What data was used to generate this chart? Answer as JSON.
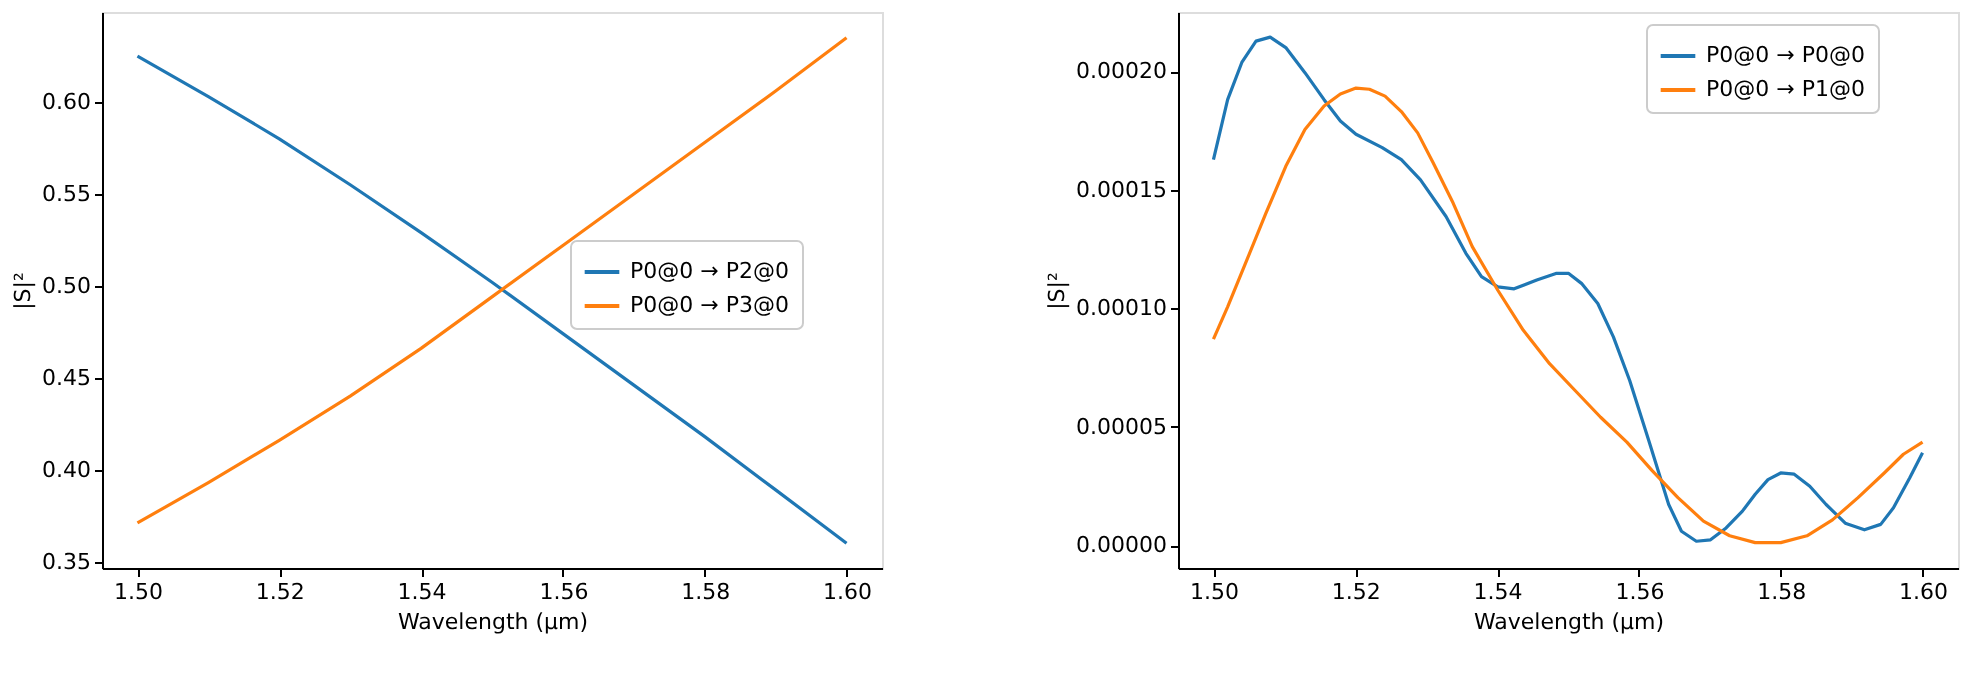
{
  "chart_data": [
    {
      "type": "line",
      "xlabel": "Wavelength (μm)",
      "ylabel": "|S|²",
      "legend": "right",
      "grid": false,
      "xlim": [
        1.495,
        1.605
      ],
      "ylim": [
        0.3465,
        0.649
      ],
      "xticks": [
        {
          "value": 1.5,
          "label": "1.50"
        },
        {
          "value": 1.52,
          "label": "1.52"
        },
        {
          "value": 1.54,
          "label": "1.54"
        },
        {
          "value": 1.56,
          "label": "1.56"
        },
        {
          "value": 1.58,
          "label": "1.58"
        },
        {
          "value": 1.6,
          "label": "1.60"
        }
      ],
      "yticks": [
        {
          "value": 0.35,
          "label": "0.35"
        },
        {
          "value": 0.4,
          "label": "0.40"
        },
        {
          "value": 0.45,
          "label": "0.45"
        },
        {
          "value": 0.5,
          "label": "0.50"
        },
        {
          "value": 0.55,
          "label": "0.55"
        },
        {
          "value": 0.6,
          "label": "0.60"
        }
      ],
      "series": [
        {
          "name": "P0@0 → P2@0",
          "color": "#1f77b4",
          "x": [
            1.5,
            1.51,
            1.52,
            1.53,
            1.54,
            1.55,
            1.56,
            1.57,
            1.58,
            1.59,
            1.6
          ],
          "values": [
            0.625,
            0.603,
            0.58,
            0.555,
            0.529,
            0.502,
            0.474,
            0.446,
            0.418,
            0.389,
            0.36
          ]
        },
        {
          "name": "P0@0 → P3@0",
          "color": "#ff7f0e",
          "x": [
            1.5,
            1.51,
            1.52,
            1.53,
            1.54,
            1.55,
            1.56,
            1.57,
            1.58,
            1.59,
            1.6
          ],
          "values": [
            0.371,
            0.393,
            0.416,
            0.44,
            0.466,
            0.494,
            0.522,
            0.55,
            0.578,
            0.606,
            0.635
          ]
        }
      ]
    },
    {
      "type": "line",
      "xlabel": "Wavelength (μm)",
      "ylabel": "|S|²",
      "legend": "top right",
      "grid": false,
      "xlim": [
        1.495,
        1.605
      ],
      "ylim": [
        -9.6e-06,
        0.000225
      ],
      "xticks": [
        {
          "value": 1.5,
          "label": "1.50"
        },
        {
          "value": 1.52,
          "label": "1.52"
        },
        {
          "value": 1.54,
          "label": "1.54"
        },
        {
          "value": 1.56,
          "label": "1.56"
        },
        {
          "value": 1.58,
          "label": "1.58"
        },
        {
          "value": 1.6,
          "label": "1.60"
        }
      ],
      "yticks": [
        {
          "value": 0,
          "label": "0.00000"
        },
        {
          "value": 5e-05,
          "label": "0.00005"
        },
        {
          "value": 0.0001,
          "label": "0.00010"
        },
        {
          "value": 0.00015,
          "label": "0.00015"
        },
        {
          "value": 0.0002,
          "label": "0.00020"
        }
      ],
      "series": [
        {
          "name": "P0@0 → P0@0",
          "color": "#1f77b4",
          "x": [
            1.5,
            1.502,
            1.504,
            1.506,
            1.508,
            1.5102,
            1.5129,
            1.5156,
            1.5179,
            1.5201,
            1.5238,
            1.5265,
            1.5292,
            1.5328,
            1.5356,
            1.5378,
            1.5401,
            1.5424,
            1.5456,
            1.5483,
            1.5501,
            1.5519,
            1.5542,
            1.5564,
            1.5587,
            1.5614,
            1.5642,
            1.566,
            1.5681,
            1.5701,
            1.5723,
            1.5746,
            1.5764,
            1.5782,
            1.58,
            1.5819,
            1.5841,
            1.5864,
            1.5891,
            1.5918,
            1.5941,
            1.5959,
            1.5982,
            1.6
          ],
          "values": [
            0.0001627,
            0.000188,
            0.0002037,
            0.0002127,
            0.0002144,
            0.00021,
            0.0001994,
            0.000188,
            0.000179,
            0.0001734,
            0.0001678,
            0.0001627,
            0.0001542,
            0.0001387,
            0.0001232,
            0.0001133,
            0.000109,
            0.0001082,
            0.0001119,
            0.0001147,
            0.0001147,
            0.0001105,
            0.000102,
            8.79e-05,
            6.95e-05,
            4.41e-05,
            1.72e-05,
            5.9e-06,
            1.7e-06,
            2.3e-06,
            7.3e-06,
            1.44e-05,
            2.15e-05,
            2.77e-05,
            3.05e-05,
            3e-05,
            2.49e-05,
            1.72e-05,
            9.3e-06,
            6.5e-06,
            8.8e-06,
            1.58e-05,
            2.85e-05,
            3.9e-05
          ]
        },
        {
          "name": "P0@0 → P1@0",
          "color": "#ff7f0e",
          "x": [
            1.5,
            1.502,
            1.5047,
            1.5074,
            1.5102,
            1.5129,
            1.5156,
            1.5179,
            1.5201,
            1.522,
            1.5242,
            1.5265,
            1.5288,
            1.531,
            1.5338,
            1.5365,
            1.5401,
            1.5437,
            1.5474,
            1.551,
            1.5546,
            1.5583,
            1.5619,
            1.5655,
            1.5691,
            1.5728,
            1.5764,
            1.58,
            1.5837,
            1.5873,
            1.5909,
            1.5946,
            1.5973,
            1.6
          ],
          "values": [
            8.7e-05,
            0.0001006,
            0.0001203,
            0.0001401,
            0.0001599,
            0.0001754,
            0.0001853,
            0.0001904,
            0.0001929,
            0.0001924,
            0.0001895,
            0.000183,
            0.000174,
            0.0001613,
            0.0001444,
            0.000126,
            0.0001076,
            9.07e-05,
            7.66e-05,
            6.53e-05,
            5.4e-05,
            4.35e-05,
            3.14e-05,
            2.01e-05,
            1.02e-05,
            4e-06,
            1.1e-06,
            1.1e-06,
            4e-06,
            1.07e-05,
            2.01e-05,
            3.05e-05,
            3.84e-05,
            4.35e-05
          ]
        }
      ]
    }
  ]
}
